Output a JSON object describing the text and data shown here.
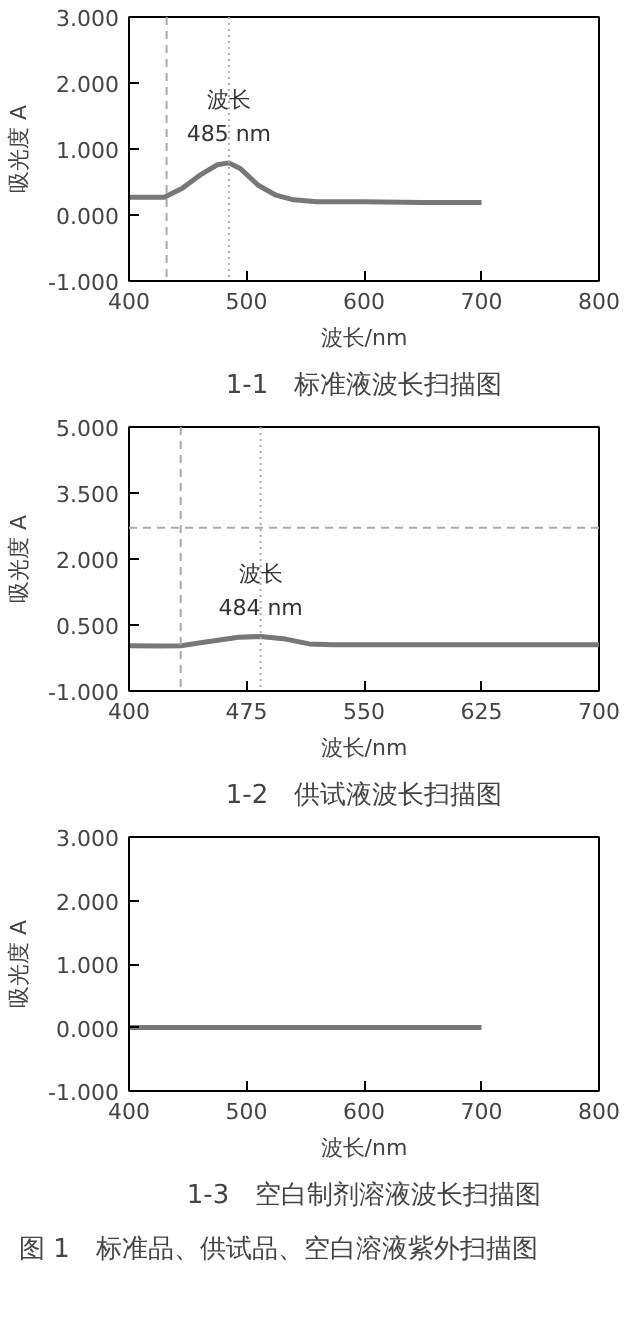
{
  "chart_data": [
    {
      "type": "line",
      "title": "1-1　标准液波长扫描图",
      "xlabel": "波长/nm",
      "ylabel": "吸光度 A",
      "xlim": [
        400,
        800
      ],
      "xticks": [
        400,
        500,
        600,
        700,
        800
      ],
      "ylim": [
        -1,
        3
      ],
      "yticks": [
        {
          "value": -1,
          "label": "-1.000"
        },
        {
          "value": 0,
          "label": "0.000"
        },
        {
          "value": 1,
          "label": "1.000"
        },
        {
          "value": 2,
          "label": "2.000"
        },
        {
          "value": 3,
          "label": "3.000"
        }
      ],
      "series": [
        {
          "color": "#777777",
          "x": [
            400,
            430,
            445,
            460,
            475,
            485,
            495,
            510,
            525,
            540,
            560,
            600,
            650,
            700
          ],
          "values": [
            0.27,
            0.27,
            0.4,
            0.6,
            0.76,
            0.79,
            0.7,
            0.45,
            0.3,
            0.23,
            0.2,
            0.2,
            0.19,
            0.19
          ]
        }
      ],
      "ref_lines": [
        {
          "axis": "x",
          "value": 432,
          "line_style": "dashed",
          "color": "#aaaaaa"
        },
        {
          "axis": "x",
          "value": 485,
          "line_style": "dotted",
          "color": "#aaaaaa"
        }
      ],
      "annotations": [
        {
          "text": "波长\n485 nm",
          "x": 485,
          "y": 0.79
        }
      ],
      "grid": false
    },
    {
      "type": "line",
      "title": "1-2　供试液波长扫描图",
      "xlabel": "波长/nm",
      "ylabel": "吸光度 A",
      "xlim": [
        400,
        700
      ],
      "xticks": [
        400,
        475,
        550,
        625,
        700
      ],
      "ylim": [
        -1,
        5
      ],
      "yticks": [
        {
          "value": -1,
          "label": "-1.000"
        },
        {
          "value": 0.5,
          "label": "0.500"
        },
        {
          "value": 2,
          "label": "2.000"
        },
        {
          "value": 3.5,
          "label": "3.500"
        },
        {
          "value": 5,
          "label": "5.000"
        }
      ],
      "series": [
        {
          "color": "#777777",
          "x": [
            400,
            420,
            433,
            450,
            470,
            484,
            500,
            515,
            530,
            600,
            700
          ],
          "values": [
            0.03,
            0.02,
            0.03,
            0.12,
            0.22,
            0.24,
            0.18,
            0.07,
            0.05,
            0.05,
            0.05
          ]
        }
      ],
      "ref_lines": [
        {
          "axis": "x",
          "value": 433,
          "line_style": "dashed",
          "color": "#aaaaaa"
        },
        {
          "axis": "x",
          "value": 484,
          "line_style": "dotted",
          "color": "#aaaaaa"
        },
        {
          "axis": "y",
          "value": 2.71,
          "line_style": "dashed",
          "color": "#aaaaaa"
        }
      ],
      "annotations": [
        {
          "text": "波长\n484 nm",
          "x": 484,
          "y": 0.24
        }
      ],
      "grid": false
    },
    {
      "type": "line",
      "title": "1-3　空白制剂溶液波长扫描图",
      "xlabel": "波长/nm",
      "ylabel": "吸光度 A",
      "xlim": [
        400,
        800
      ],
      "xticks": [
        400,
        500,
        600,
        700,
        800
      ],
      "ylim": [
        -1,
        3
      ],
      "yticks": [
        {
          "value": -1,
          "label": "-1.000"
        },
        {
          "value": 0,
          "label": "0.000"
        },
        {
          "value": 1,
          "label": "1.000"
        },
        {
          "value": 2,
          "label": "2.000"
        },
        {
          "value": 3,
          "label": "3.000"
        }
      ],
      "series": [
        {
          "color": "#777777",
          "x": [
            400,
            700
          ],
          "values": [
            0,
            0
          ]
        }
      ],
      "annotations": [
        "图 1　标准品、供试品、空白溶液紫外扫描图"
      ],
      "grid": false
    }
  ]
}
